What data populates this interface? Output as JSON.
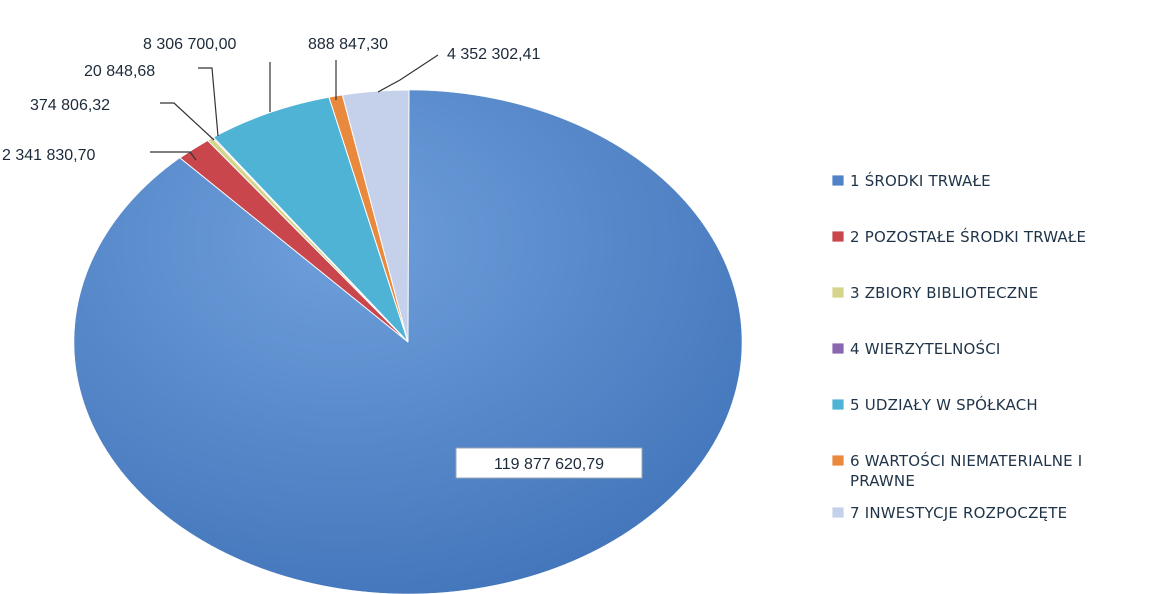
{
  "chart_data": {
    "type": "pie",
    "categories": [
      "1 ŚRODKI TRWAŁE",
      "2 POZOSTAŁE ŚRODKI TRWAŁE",
      "3 ZBIORY BIBLIOTECZNE",
      "4 WIERZYTELNOŚCI",
      "5 UDZIAŁY W SPÓŁKACH",
      "6 WARTOŚCI NIEMATERIALNE I PRAWNE",
      "7 INWESTYCJE ROZPOCZĘTE"
    ],
    "values": [
      119877620.79,
      2341830.7,
      374806.32,
      20848.68,
      8306700.0,
      888847.3,
      4352302.41
    ],
    "value_labels": [
      "119 877 620,79",
      "2 341 830,70",
      "374 806,32",
      "20 848,68",
      "8 306 700,00",
      "888 847,30",
      "4 352 302,41"
    ],
    "legend_lines": [
      [
        "1 ŚRODKI TRWAŁE"
      ],
      [
        "2 POZOSTAŁE ŚRODKI TRWAŁE"
      ],
      [
        "3 ZBIORY BIBLIOTECZNE"
      ],
      [
        "4 WIERZYTELNOŚCI"
      ],
      [
        "5 UDZIAŁY W SPÓŁKACH"
      ],
      [
        "6 WARTOŚCI NIEMATERIALNE I",
        "PRAWNE"
      ],
      [
        "7 INWESTYCJE ROZPOCZĘTE"
      ]
    ],
    "colors": [
      "#4f82c6",
      "#c8464c",
      "#d6d38a",
      "#8a66b0",
      "#4fb3d6",
      "#e8893e",
      "#c5d0ea"
    ],
    "title": "",
    "legend_position": "right"
  }
}
